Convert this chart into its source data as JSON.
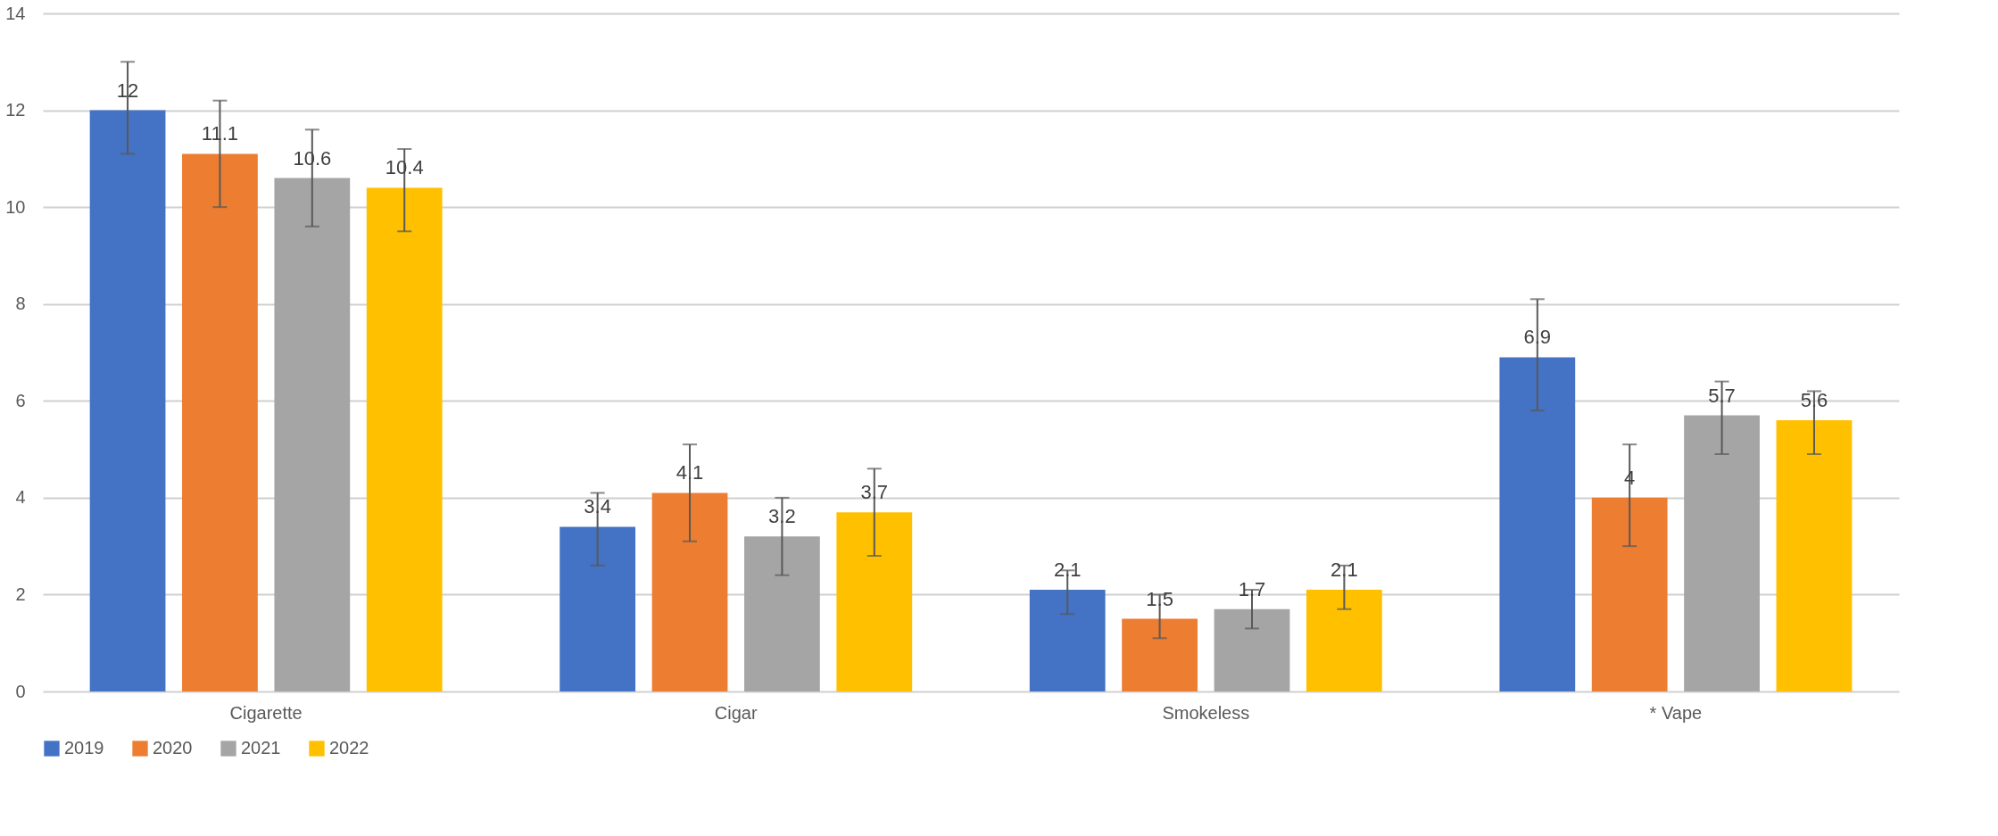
{
  "chart_data": {
    "type": "bar",
    "categories": [
      "Cigarette",
      "Cigar",
      "Smokeless",
      "* Vape"
    ],
    "series": [
      {
        "name": "2019",
        "color": "#4472c4",
        "values": [
          12,
          3.4,
          2.1,
          6.9
        ],
        "errors": [
          [
            11.1,
            13.0
          ],
          [
            2.6,
            4.1
          ],
          [
            1.6,
            2.5
          ],
          [
            5.8,
            8.1
          ]
        ]
      },
      {
        "name": "2020",
        "color": "#ed7d31",
        "values": [
          11.1,
          4.1,
          1.5,
          4
        ],
        "errors": [
          [
            10.0,
            12.2
          ],
          [
            3.1,
            5.1
          ],
          [
            1.1,
            2.0
          ],
          [
            3.0,
            5.1
          ]
        ]
      },
      {
        "name": "2021",
        "color": "#a5a5a5",
        "values": [
          10.6,
          3.2,
          1.7,
          5.7
        ],
        "errors": [
          [
            9.6,
            11.6
          ],
          [
            2.4,
            4.0
          ],
          [
            1.3,
            2.1
          ],
          [
            4.9,
            6.4
          ]
        ]
      },
      {
        "name": "2022",
        "color": "#ffc000",
        "values": [
          10.4,
          3.7,
          2.1,
          5.6
        ],
        "errors": [
          [
            9.5,
            11.2
          ],
          [
            2.8,
            4.6
          ],
          [
            1.7,
            2.6
          ],
          [
            4.9,
            6.2
          ]
        ]
      }
    ],
    "ylim": [
      0,
      14
    ],
    "yticks": [
      0,
      2,
      4,
      6,
      8,
      10,
      12,
      14
    ],
    "grid": "y",
    "legend": "bottom",
    "data_labels": true
  }
}
